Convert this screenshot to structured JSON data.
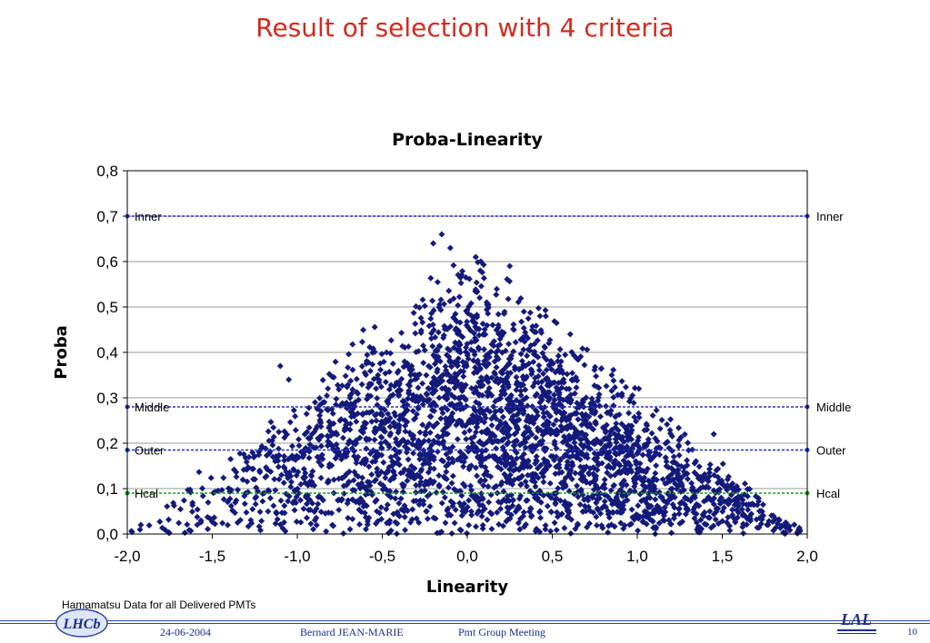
{
  "slide": {
    "title": "Result of selection with 4 criteria",
    "footnote": "Hamamatsu Data for all Delivered PMTs",
    "footer": {
      "date": "24-06-2004",
      "author": "Bernard JEAN-MARIE",
      "meeting": "Pmt Group Meeting",
      "page": "10",
      "logo_left": "LHCb",
      "logo_right": "LAL"
    }
  },
  "chart_data": {
    "type": "scatter",
    "title": "Proba-Linearity",
    "xlabel": "Linearity",
    "ylabel": "Proba",
    "xlim": [
      -2.0,
      2.0
    ],
    "ylim": [
      0.0,
      0.8
    ],
    "xticks": [
      "-2,0",
      "-1,5",
      "-1,0",
      "-0,5",
      "0,0",
      "0,5",
      "1,0",
      "1,5",
      "2,0"
    ],
    "yticks": [
      "0,0",
      "0,1",
      "0,2",
      "0,3",
      "0,4",
      "0,5",
      "0,6",
      "0,7",
      "0,8"
    ],
    "grid": "horizontal",
    "marker_color": "#141a7a",
    "point_count_approx": 3000,
    "distribution": "triangular envelope: proba upper bound ~0.33*(2-|x|), densest around x=0..0.4, proba 0.1-0.3",
    "sample_points": [
      {
        "x": -0.15,
        "y": 0.66
      },
      {
        "x": -0.2,
        "y": 0.64
      },
      {
        "x": -0.1,
        "y": 0.63
      },
      {
        "x": 0.05,
        "y": 0.61
      },
      {
        "x": 0.08,
        "y": 0.6
      },
      {
        "x": 0.25,
        "y": 0.59
      },
      {
        "x": -1.1,
        "y": 0.37
      },
      {
        "x": -1.05,
        "y": 0.34
      },
      {
        "x": 0.85,
        "y": 0.35
      },
      {
        "x": 1.45,
        "y": 0.22
      },
      {
        "x": -1.92,
        "y": 0.02
      },
      {
        "x": 1.95,
        "y": 0.01
      }
    ],
    "reference_lines": [
      {
        "name": "Inner",
        "y": 0.7,
        "color": "#1f2fd0"
      },
      {
        "name": "Middle",
        "y": 0.28,
        "color": "#1f2fd0"
      },
      {
        "name": "Outer",
        "y": 0.185,
        "color": "#1f2fd0"
      },
      {
        "name": "Hcal",
        "y": 0.09,
        "color": "#1a9a1a"
      }
    ]
  }
}
